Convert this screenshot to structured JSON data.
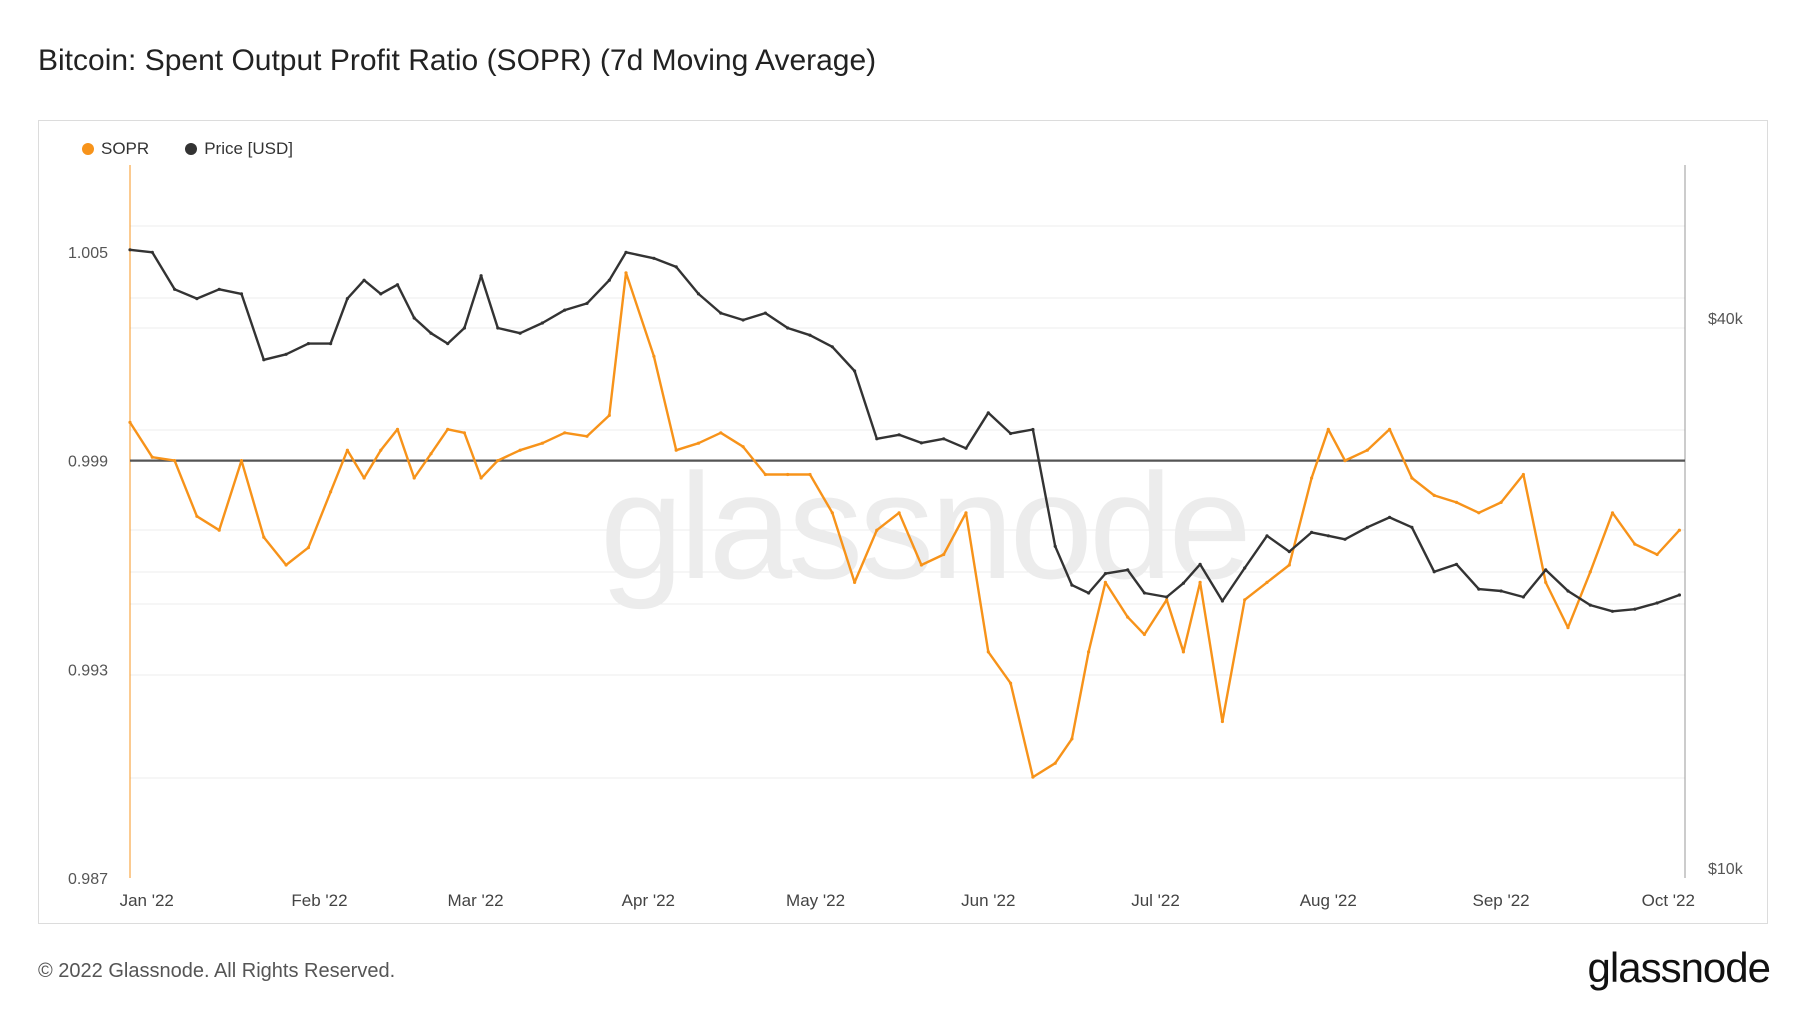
{
  "title": "Bitcoin: Spent Output Profit Ratio (SOPR) (7d Moving Average)",
  "legend": [
    {
      "label": "SOPR",
      "color": "#f7931a"
    },
    {
      "label": "Price [USD]",
      "color": "#333333"
    }
  ],
  "footer": {
    "copyright": "© 2022 Glassnode. All Rights Reserved.",
    "logo": "glassnode"
  },
  "watermark": "glassnode",
  "chart_data": {
    "type": "line",
    "x_ticks": [
      "Jan '22",
      "Feb '22",
      "Mar '22",
      "Apr '22",
      "May '22",
      "Jun '22",
      "Jul '22",
      "Aug '22",
      "Sep '22",
      "Oct '22"
    ],
    "y_left_ticks": [
      "1.005",
      "0.999",
      "0.993",
      "0.987"
    ],
    "y_right_ticks": [
      "$40k",
      "$10k"
    ],
    "y_left_range": [
      0.987,
      1.0075
    ],
    "y_right_scale": "log",
    "reference_line": 0.999,
    "grid": true,
    "legend_position": "top-left",
    "series": [
      {
        "name": "SOPR",
        "axis": "left",
        "color": "#f7931a",
        "x": [
          "2021-12-29",
          "2022-01-02",
          "2022-01-06",
          "2022-01-10",
          "2022-01-14",
          "2022-01-18",
          "2022-01-22",
          "2022-01-26",
          "2022-01-30",
          "2022-02-03",
          "2022-02-06",
          "2022-02-09",
          "2022-02-12",
          "2022-02-15",
          "2022-02-18",
          "2022-02-21",
          "2022-02-24",
          "2022-02-27",
          "2022-03-02",
          "2022-03-05",
          "2022-03-09",
          "2022-03-13",
          "2022-03-17",
          "2022-03-21",
          "2022-03-25",
          "2022-03-28",
          "2022-04-02",
          "2022-04-06",
          "2022-04-10",
          "2022-04-14",
          "2022-04-18",
          "2022-04-22",
          "2022-04-26",
          "2022-04-30",
          "2022-05-04",
          "2022-05-08",
          "2022-05-12",
          "2022-05-16",
          "2022-05-20",
          "2022-05-24",
          "2022-05-28",
          "2022-06-01",
          "2022-06-05",
          "2022-06-09",
          "2022-06-13",
          "2022-06-16",
          "2022-06-19",
          "2022-06-22",
          "2022-06-26",
          "2022-06-29",
          "2022-07-03",
          "2022-07-06",
          "2022-07-09",
          "2022-07-13",
          "2022-07-17",
          "2022-07-21",
          "2022-07-25",
          "2022-07-29",
          "2022-08-01",
          "2022-08-04",
          "2022-08-08",
          "2022-08-12",
          "2022-08-16",
          "2022-08-20",
          "2022-08-24",
          "2022-08-28",
          "2022-09-01",
          "2022-09-05",
          "2022-09-09",
          "2022-09-13",
          "2022-09-17",
          "2022-09-21",
          "2022-09-25",
          "2022-09-29",
          "2022-10-03"
        ],
        "values": [
          1.0001,
          0.9991,
          0.999,
          0.9974,
          0.997,
          0.999,
          0.9968,
          0.996,
          0.9965,
          0.9981,
          0.9993,
          0.9985,
          0.9993,
          0.9999,
          0.9985,
          0.9992,
          0.9999,
          0.9998,
          0.9985,
          0.999,
          0.9993,
          0.9995,
          0.9998,
          0.9997,
          1.0003,
          1.0044,
          1.002,
          0.9993,
          0.9995,
          0.9998,
          0.9994,
          0.9986,
          0.9986,
          0.9986,
          0.9975,
          0.9955,
          0.997,
          0.9975,
          0.996,
          0.9963,
          0.9975,
          0.9935,
          0.9926,
          0.9899,
          0.9903,
          0.991,
          0.9935,
          0.9955,
          0.9945,
          0.994,
          0.995,
          0.9935,
          0.9955,
          0.9915,
          0.995,
          0.9955,
          0.996,
          0.9985,
          0.9999,
          0.999,
          0.9993,
          0.9999,
          0.9985,
          0.998,
          0.9978,
          0.9975,
          0.9978,
          0.9986,
          0.9955,
          0.9942,
          0.9958,
          0.9975,
          0.9966,
          0.9963,
          0.997
        ]
      },
      {
        "name": "Price [USD]",
        "axis": "right",
        "color": "#333333",
        "x": [
          "2021-12-29",
          "2022-01-02",
          "2022-01-06",
          "2022-01-10",
          "2022-01-14",
          "2022-01-18",
          "2022-01-22",
          "2022-01-26",
          "2022-01-30",
          "2022-02-03",
          "2022-02-06",
          "2022-02-09",
          "2022-02-12",
          "2022-02-15",
          "2022-02-18",
          "2022-02-21",
          "2022-02-24",
          "2022-02-27",
          "2022-03-02",
          "2022-03-05",
          "2022-03-09",
          "2022-03-13",
          "2022-03-17",
          "2022-03-21",
          "2022-03-25",
          "2022-03-28",
          "2022-04-02",
          "2022-04-06",
          "2022-04-10",
          "2022-04-14",
          "2022-04-18",
          "2022-04-22",
          "2022-04-26",
          "2022-04-30",
          "2022-05-04",
          "2022-05-08",
          "2022-05-12",
          "2022-05-16",
          "2022-05-20",
          "2022-05-24",
          "2022-05-28",
          "2022-06-01",
          "2022-06-05",
          "2022-06-09",
          "2022-06-13",
          "2022-06-16",
          "2022-06-19",
          "2022-06-22",
          "2022-06-26",
          "2022-06-29",
          "2022-07-03",
          "2022-07-06",
          "2022-07-09",
          "2022-07-13",
          "2022-07-17",
          "2022-07-21",
          "2022-07-25",
          "2022-07-29",
          "2022-08-01",
          "2022-08-04",
          "2022-08-08",
          "2022-08-12",
          "2022-08-16",
          "2022-08-20",
          "2022-08-24",
          "2022-08-28",
          "2022-09-01",
          "2022-09-05",
          "2022-09-09",
          "2022-09-13",
          "2022-09-17",
          "2022-09-21",
          "2022-09-25",
          "2022-09-29",
          "2022-10-03"
        ],
        "values": [
          47500,
          47200,
          43000,
          42000,
          43000,
          42500,
          36000,
          36500,
          37500,
          37500,
          42000,
          44000,
          42500,
          43500,
          40000,
          38500,
          37500,
          39000,
          44500,
          39000,
          38500,
          39500,
          40800,
          41500,
          44000,
          47200,
          46500,
          45500,
          42500,
          40500,
          39800,
          40500,
          39000,
          38300,
          37200,
          35000,
          29500,
          29800,
          29200,
          29500,
          28800,
          31500,
          29900,
          30200,
          22500,
          20400,
          20000,
          21000,
          21200,
          20000,
          19800,
          20500,
          21500,
          19600,
          21300,
          23100,
          22200,
          23300,
          23100,
          22900,
          23600,
          24200,
          23600,
          21100,
          21500,
          20200,
          20100,
          19800,
          21200,
          20100,
          19400,
          19100,
          19200,
          19500,
          19900
        ]
      }
    ]
  }
}
